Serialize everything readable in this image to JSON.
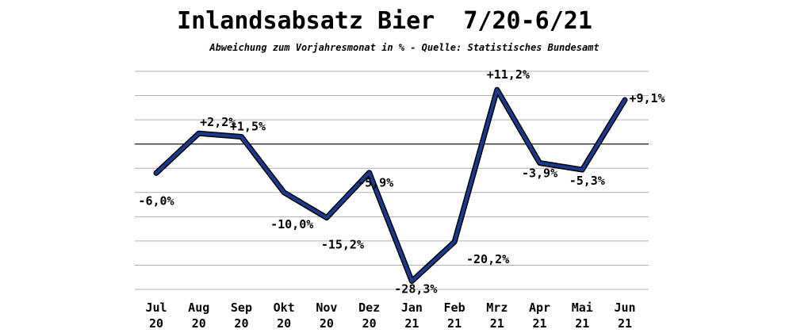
{
  "chart_data": {
    "type": "line",
    "title": "Inlandsabsatz Bier  7/20-6/21",
    "subtitle": "Abweichung zum Vorjahresmonat in % - Quelle: Statistisches Bundesamt",
    "categories": [
      [
        "Jul",
        "20"
      ],
      [
        "Aug",
        "20"
      ],
      [
        "Sep",
        "20"
      ],
      [
        "Okt",
        "20"
      ],
      [
        "Nov",
        "20"
      ],
      [
        "Dez",
        "20"
      ],
      [
        "Jan",
        "21"
      ],
      [
        "Feb",
        "21"
      ],
      [
        "Mrz",
        "21"
      ],
      [
        "Apr",
        "21"
      ],
      [
        "Mai",
        "21"
      ],
      [
        "Jun",
        "21"
      ]
    ],
    "series": [
      {
        "values": [
          -6.0,
          2.2,
          1.5,
          -10.0,
          -15.2,
          -5.9,
          -28.3,
          -20.2,
          11.2,
          -3.9,
          -5.3,
          9.1
        ],
        "labels": [
          "-6,0%",
          "+2,2%",
          "+1,5%",
          "-10,0%",
          "-15,2%",
          "-5,9%",
          "-28,3%",
          "-20,2%",
          "+11,2%",
          "-3,9%",
          "-5,3%",
          "+9,1%"
        ],
        "color": "#1a3a8f"
      }
    ],
    "ylim": [
      -30,
      15
    ],
    "grid": true,
    "legend": "none"
  }
}
